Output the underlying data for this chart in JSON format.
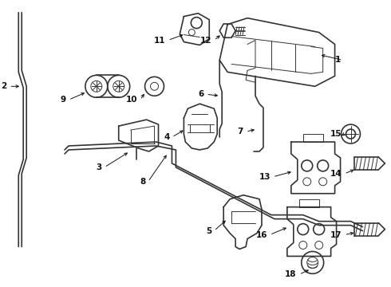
{
  "background_color": "#ffffff",
  "line_color": "#333333",
  "text_color": "#111111",
  "fig_width": 4.9,
  "fig_height": 3.6,
  "dpi": 100,
  "border_color": "#888888",
  "label_fontsize": 7.5,
  "lw_main": 1.2,
  "lw_thick": 2.0,
  "lw_thin": 0.7
}
